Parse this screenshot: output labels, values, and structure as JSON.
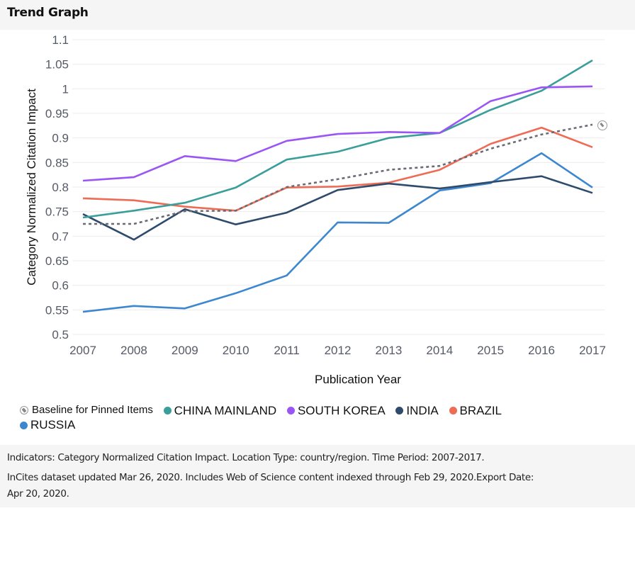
{
  "header": {
    "title": "Trend Graph"
  },
  "chart_data": {
    "type": "line",
    "title": "",
    "xlabel": "Publication Year",
    "ylabel": "Category Normalized Citation Impact",
    "x": [
      2007,
      2008,
      2009,
      2010,
      2011,
      2012,
      2013,
      2014,
      2015,
      2016,
      2017
    ],
    "ylim": [
      0.5,
      1.1
    ],
    "yticks": [
      0.5,
      0.55,
      0.6,
      0.65,
      0.7,
      0.75,
      0.8,
      0.85,
      0.9,
      0.95,
      1,
      1.05,
      1.1
    ],
    "ytick_labels": [
      "0.5",
      "0.55",
      "0.6",
      "0.65",
      "0.7",
      "0.75",
      "0.8",
      "0.85",
      "0.9",
      "0.95",
      "1",
      "1.05",
      "1.1"
    ],
    "xtick_labels": [
      "2007",
      "2008",
      "2009",
      "2010",
      "2011",
      "2012",
      "2013",
      "2014",
      "2015",
      "2016",
      "2017"
    ],
    "grid": true,
    "legend_position": "bottom-left",
    "series": [
      {
        "name": "Baseline for Pinned Items",
        "color": "#6b6b75",
        "style": "dotted",
        "values": [
          0.725,
          0.725,
          0.751,
          0.752,
          0.8,
          0.816,
          0.835,
          0.843,
          0.878,
          0.907,
          0.927
        ]
      },
      {
        "name": "CHINA MAINLAND",
        "color": "#3a9e9a",
        "style": "solid",
        "values": [
          0.738,
          0.752,
          0.768,
          0.799,
          0.856,
          0.872,
          0.9,
          0.91,
          0.957,
          0.996,
          1.058
        ]
      },
      {
        "name": "SOUTH KOREA",
        "color": "#9a55f5",
        "style": "solid",
        "values": [
          0.813,
          0.82,
          0.863,
          0.853,
          0.894,
          0.908,
          0.912,
          0.91,
          0.975,
          1.003,
          1.005
        ]
      },
      {
        "name": "INDIA",
        "color": "#2f4b6b",
        "style": "solid",
        "values": [
          0.745,
          0.693,
          0.755,
          0.724,
          0.748,
          0.794,
          0.807,
          0.797,
          0.81,
          0.822,
          0.788
        ]
      },
      {
        "name": "BRAZIL",
        "color": "#ee6b55",
        "style": "solid",
        "values": [
          0.777,
          0.773,
          0.76,
          0.752,
          0.799,
          0.801,
          0.809,
          0.835,
          0.888,
          0.921,
          0.881
        ]
      },
      {
        "name": "RUSSIA",
        "color": "#3d87cf",
        "style": "solid",
        "values": [
          0.546,
          0.558,
          0.553,
          0.584,
          0.62,
          0.728,
          0.727,
          0.793,
          0.808,
          0.869,
          0.799
        ]
      }
    ]
  },
  "legend": {
    "items": [
      {
        "label": "Baseline for Pinned Items",
        "icon": "pin-icon"
      },
      {
        "label": "CHINA MAINLAND",
        "color": "#3a9e9a"
      },
      {
        "label": "SOUTH KOREA",
        "color": "#9a55f5"
      },
      {
        "label": "INDIA",
        "color": "#2f4b6b"
      },
      {
        "label": "BRAZIL",
        "color": "#ee6b55"
      },
      {
        "label": "RUSSIA",
        "color": "#3d87cf"
      }
    ]
  },
  "footer": {
    "line1": "Indicators:  Category Normalized Citation Impact.  Location Type:  country/region.  Time Period:  2007-2017.",
    "line2": "InCites dataset updated Mar 26, 2020. Includes Web of Science content indexed through Feb 29, 2020.Export Date:",
    "line3": "Apr 20, 2020."
  }
}
